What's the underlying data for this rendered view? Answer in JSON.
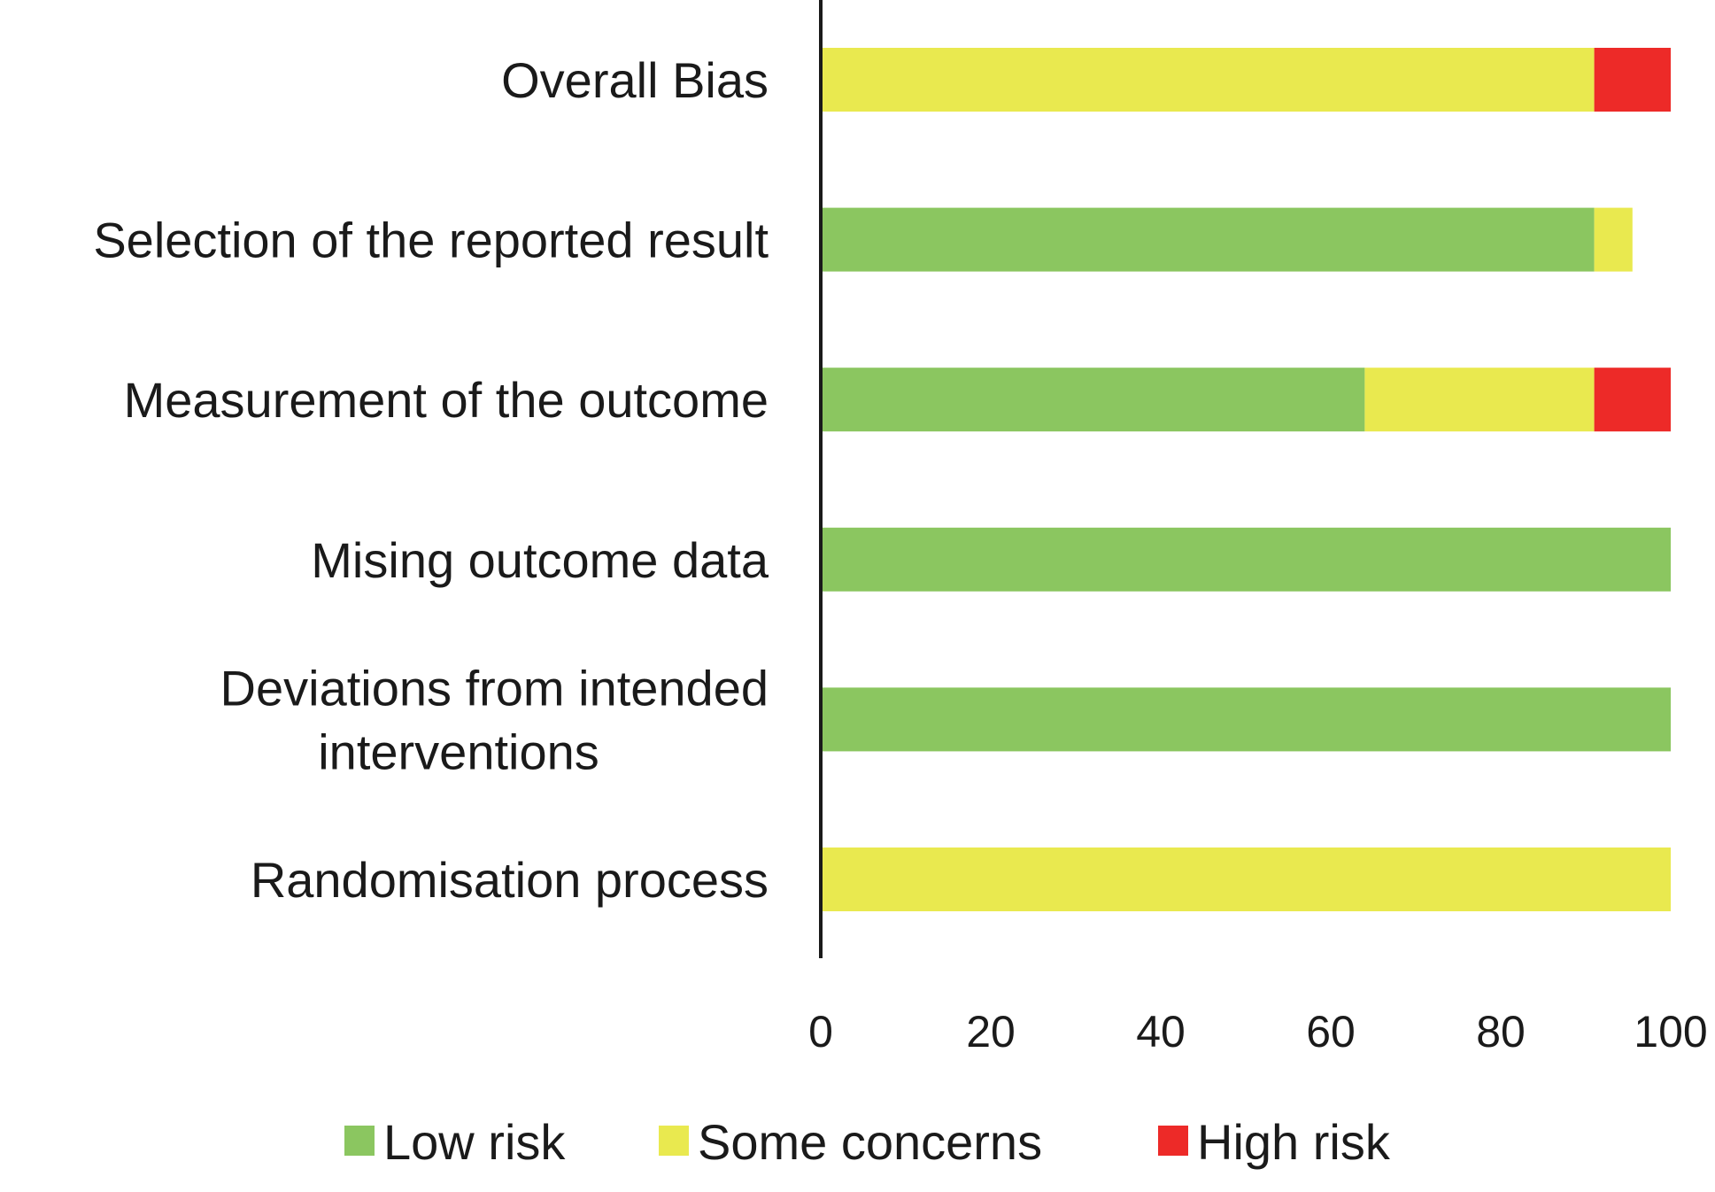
{
  "chart_data": {
    "type": "bar",
    "orientation": "horizontal",
    "stacked": true,
    "title": "",
    "xlabel": "",
    "ylabel": "",
    "xlim": [
      0,
      100
    ],
    "x_ticks": [
      0,
      20,
      40,
      60,
      80,
      100
    ],
    "grid": false,
    "legend_position": "bottom",
    "categories": [
      [
        "Overall Bias"
      ],
      [
        "Selection of the reported result"
      ],
      [
        "Measurement of the outcome"
      ],
      [
        "Mising outcome data"
      ],
      [
        "Deviations from intended",
        "interventions"
      ],
      [
        "Randomisation process"
      ]
    ],
    "series": [
      {
        "name": "Low risk",
        "color": "#8bc660",
        "values": [
          0,
          91,
          64,
          100,
          100,
          0
        ]
      },
      {
        "name": "Some concerns",
        "color": "#e9e94f",
        "values": [
          91,
          4.5,
          27,
          0,
          0,
          100
        ]
      },
      {
        "name": "High risk",
        "color": "#ed2a28",
        "values": [
          9,
          0,
          9,
          0,
          0,
          0
        ]
      }
    ]
  },
  "colors": {
    "axis": "#1a1a1a",
    "text": "#1a1a1a"
  }
}
